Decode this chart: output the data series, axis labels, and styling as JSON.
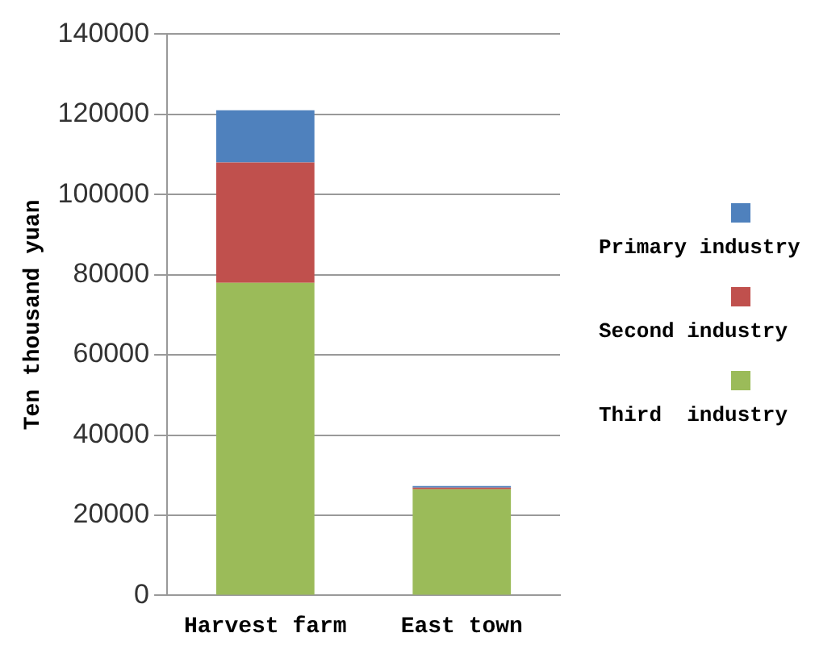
{
  "chart_data": {
    "type": "bar",
    "stacked": true,
    "ylabel": "Ten thousand yuan",
    "categories": [
      "Harvest farm",
      "East town"
    ],
    "series": [
      {
        "name": "Third  industry",
        "color": "#9bbb59",
        "values": [
          78000,
          26500
        ]
      },
      {
        "name": "Second industry",
        "color": "#c0504d",
        "values": [
          30000,
          400
        ]
      },
      {
        "name": "Primary industry",
        "color": "#4f81bd",
        "values": [
          13000,
          400
        ]
      }
    ],
    "ylim": [
      0,
      140000
    ],
    "yticks": [
      0,
      20000,
      40000,
      60000,
      80000,
      100000,
      120000,
      140000
    ],
    "grid": "y",
    "legend": "right"
  }
}
